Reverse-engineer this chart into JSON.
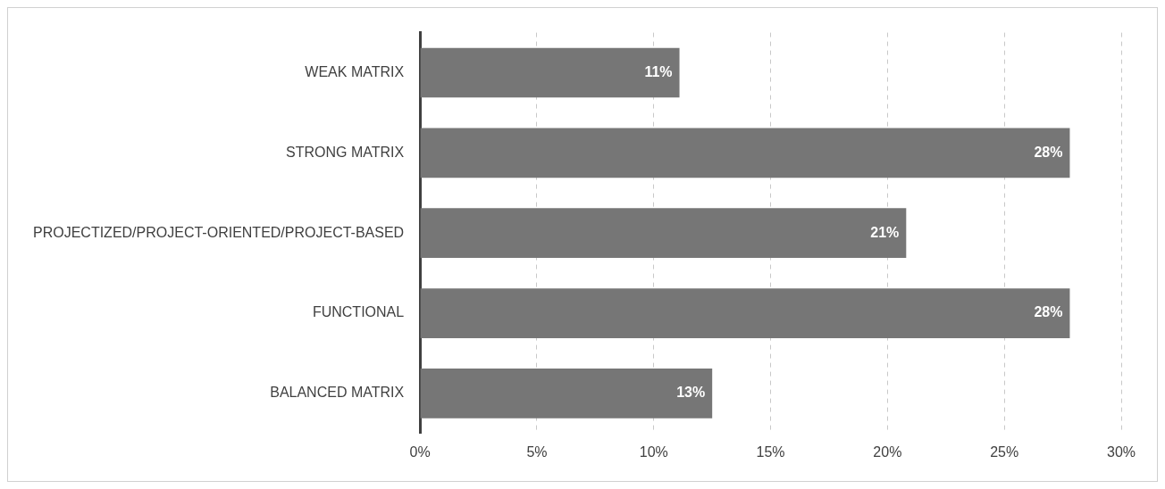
{
  "chart_data": {
    "type": "bar",
    "orientation": "horizontal",
    "categories": [
      "WEAK MATRIX",
      "STRONG MATRIX",
      "PROJECTIZED/PROJECT-ORIENTED/PROJECT-BASED",
      "FUNCTIONAL",
      "BALANCED MATRIX"
    ],
    "values": [
      11.1,
      27.8,
      20.8,
      27.8,
      12.5
    ],
    "value_labels": [
      "11%",
      "28%",
      "21%",
      "28%",
      "13%"
    ],
    "color": "#767676",
    "xlim": [
      0,
      30
    ],
    "xticks": [
      {
        "value": 0,
        "label": "0%"
      },
      {
        "value": 5,
        "label": "5%"
      },
      {
        "value": 10,
        "label": "10%"
      },
      {
        "value": 15,
        "label": "15%"
      },
      {
        "value": 20,
        "label": "20%"
      },
      {
        "value": 25,
        "label": "25%"
      },
      {
        "value": 30,
        "label": "30%"
      }
    ],
    "grid": "x",
    "legend": false
  }
}
